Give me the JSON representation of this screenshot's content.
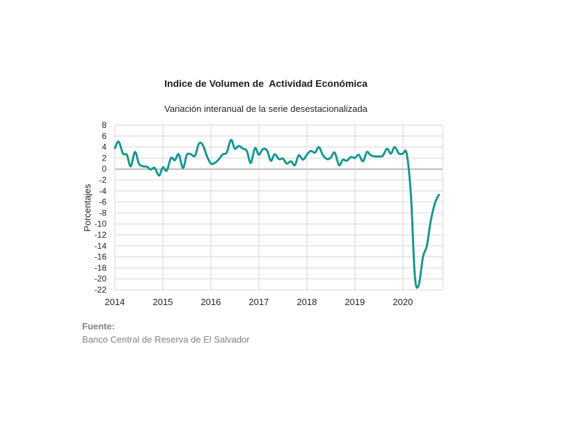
{
  "chart_data": {
    "type": "line",
    "title": "Indice de Volumen de  Actividad Económica",
    "subtitle": "Variación interanual de la serie desestacionalizada",
    "xlabel": "",
    "ylabel": "Porcentajes",
    "ylim": [
      -22,
      8
    ],
    "yticks": [
      8,
      6,
      4,
      2,
      0,
      -2,
      -4,
      -6,
      -8,
      -10,
      -12,
      -14,
      -16,
      -18,
      -20,
      -22
    ],
    "xlim": [
      2014,
      2020.83
    ],
    "xticks": [
      "2014",
      "2015",
      "2016",
      "2017",
      "2018",
      "2019",
      "2020"
    ],
    "grid": true,
    "line_color": "#17968f",
    "series": [
      {
        "x": [
          2014.0,
          2014.08,
          2014.17,
          2014.25,
          2014.33,
          2014.42,
          2014.5,
          2014.58,
          2014.67,
          2014.75,
          2014.83,
          2014.92,
          2015.0,
          2015.08,
          2015.17,
          2015.25,
          2015.33,
          2015.42,
          2015.5,
          2015.58,
          2015.67,
          2015.75,
          2015.83,
          2015.92,
          2016.0,
          2016.08,
          2016.17,
          2016.25,
          2016.33,
          2016.42,
          2016.5,
          2016.58,
          2016.67,
          2016.75,
          2016.83,
          2016.92,
          2017.0,
          2017.08,
          2017.17,
          2017.25,
          2017.33,
          2017.42,
          2017.5,
          2017.58,
          2017.67,
          2017.75,
          2017.83,
          2017.92,
          2018.0,
          2018.08,
          2018.17,
          2018.25,
          2018.33,
          2018.42,
          2018.5,
          2018.58,
          2018.67,
          2018.75,
          2018.83,
          2018.92,
          2019.0,
          2019.08,
          2019.17,
          2019.25,
          2019.33,
          2019.42,
          2019.5,
          2019.58,
          2019.67,
          2019.75,
          2019.83,
          2019.92,
          2020.0,
          2020.08,
          2020.17,
          2020.25,
          2020.33,
          2020.42,
          2020.5,
          2020.58,
          2020.67,
          2020.75
        ],
        "values": [
          3.8,
          5.0,
          2.8,
          2.6,
          0.5,
          3.1,
          1.0,
          0.5,
          0.4,
          -0.1,
          0.2,
          -1.2,
          0.3,
          -0.3,
          2.0,
          1.6,
          2.7,
          0.2,
          2.6,
          2.7,
          2.4,
          4.6,
          4.4,
          2.3,
          1.0,
          1.1,
          1.8,
          2.7,
          3.0,
          5.3,
          3.7,
          4.2,
          3.7,
          3.3,
          1.1,
          3.8,
          2.6,
          3.6,
          3.4,
          1.5,
          2.7,
          1.8,
          1.9,
          1.0,
          1.4,
          0.7,
          2.5,
          1.7,
          2.6,
          3.3,
          3.0,
          4.0,
          2.6,
          1.8,
          2.1,
          3.0,
          0.7,
          1.7,
          1.5,
          2.2,
          2.0,
          2.6,
          1.4,
          3.1,
          2.5,
          2.3,
          2.3,
          2.4,
          3.7,
          2.8,
          4.0,
          2.8,
          2.8,
          2.8,
          -5.0,
          -19.5,
          -21.2,
          -16.0,
          -14.0,
          -9.5,
          -6.2,
          -4.7
        ]
      }
    ]
  },
  "source": {
    "label": "Fuente:",
    "text": "Banco Central de Reserva de El Salvador"
  }
}
